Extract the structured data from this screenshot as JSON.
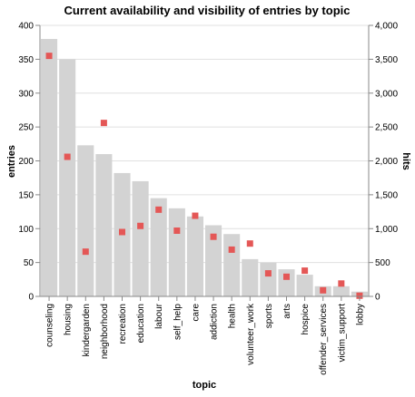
{
  "chart_data": {
    "type": "bar",
    "title": "Current availability and visibility of entries by topic",
    "xlabel": "topic",
    "ylabel_left": "entries",
    "ylabel_right": "hits",
    "categories": [
      "counseling",
      "housing",
      "kindergarden",
      "neighborhood",
      "recreation",
      "education",
      "labour",
      "self_help",
      "care",
      "addiction",
      "health",
      "volunteer_work",
      "sports",
      "arts",
      "hospice",
      "offender_services",
      "victim_support",
      "lobby"
    ],
    "series": [
      {
        "name": "entries",
        "mark": "bar",
        "axis": "left",
        "color": "#d3d3d3",
        "values": [
          380,
          350,
          223,
          210,
          182,
          170,
          145,
          130,
          118,
          105,
          92,
          55,
          50,
          40,
          32,
          15,
          15,
          7
        ]
      },
      {
        "name": "hits",
        "mark": "square",
        "axis": "right",
        "color": "#e45756",
        "values": [
          3550,
          2060,
          660,
          2560,
          950,
          1040,
          1280,
          970,
          1190,
          880,
          690,
          780,
          340,
          290,
          380,
          90,
          190,
          10
        ]
      }
    ],
    "ylim_left": [
      0,
      400
    ],
    "ylim_right": [
      0,
      4000
    ],
    "yticks_left": [
      "0",
      "50",
      "100",
      "150",
      "200",
      "250",
      "300",
      "350",
      "400"
    ],
    "yticks_right": [
      "0",
      "500",
      "1,000",
      "1,500",
      "2,000",
      "2,500",
      "3,000",
      "3,500",
      "4,000"
    ],
    "grid": true
  }
}
